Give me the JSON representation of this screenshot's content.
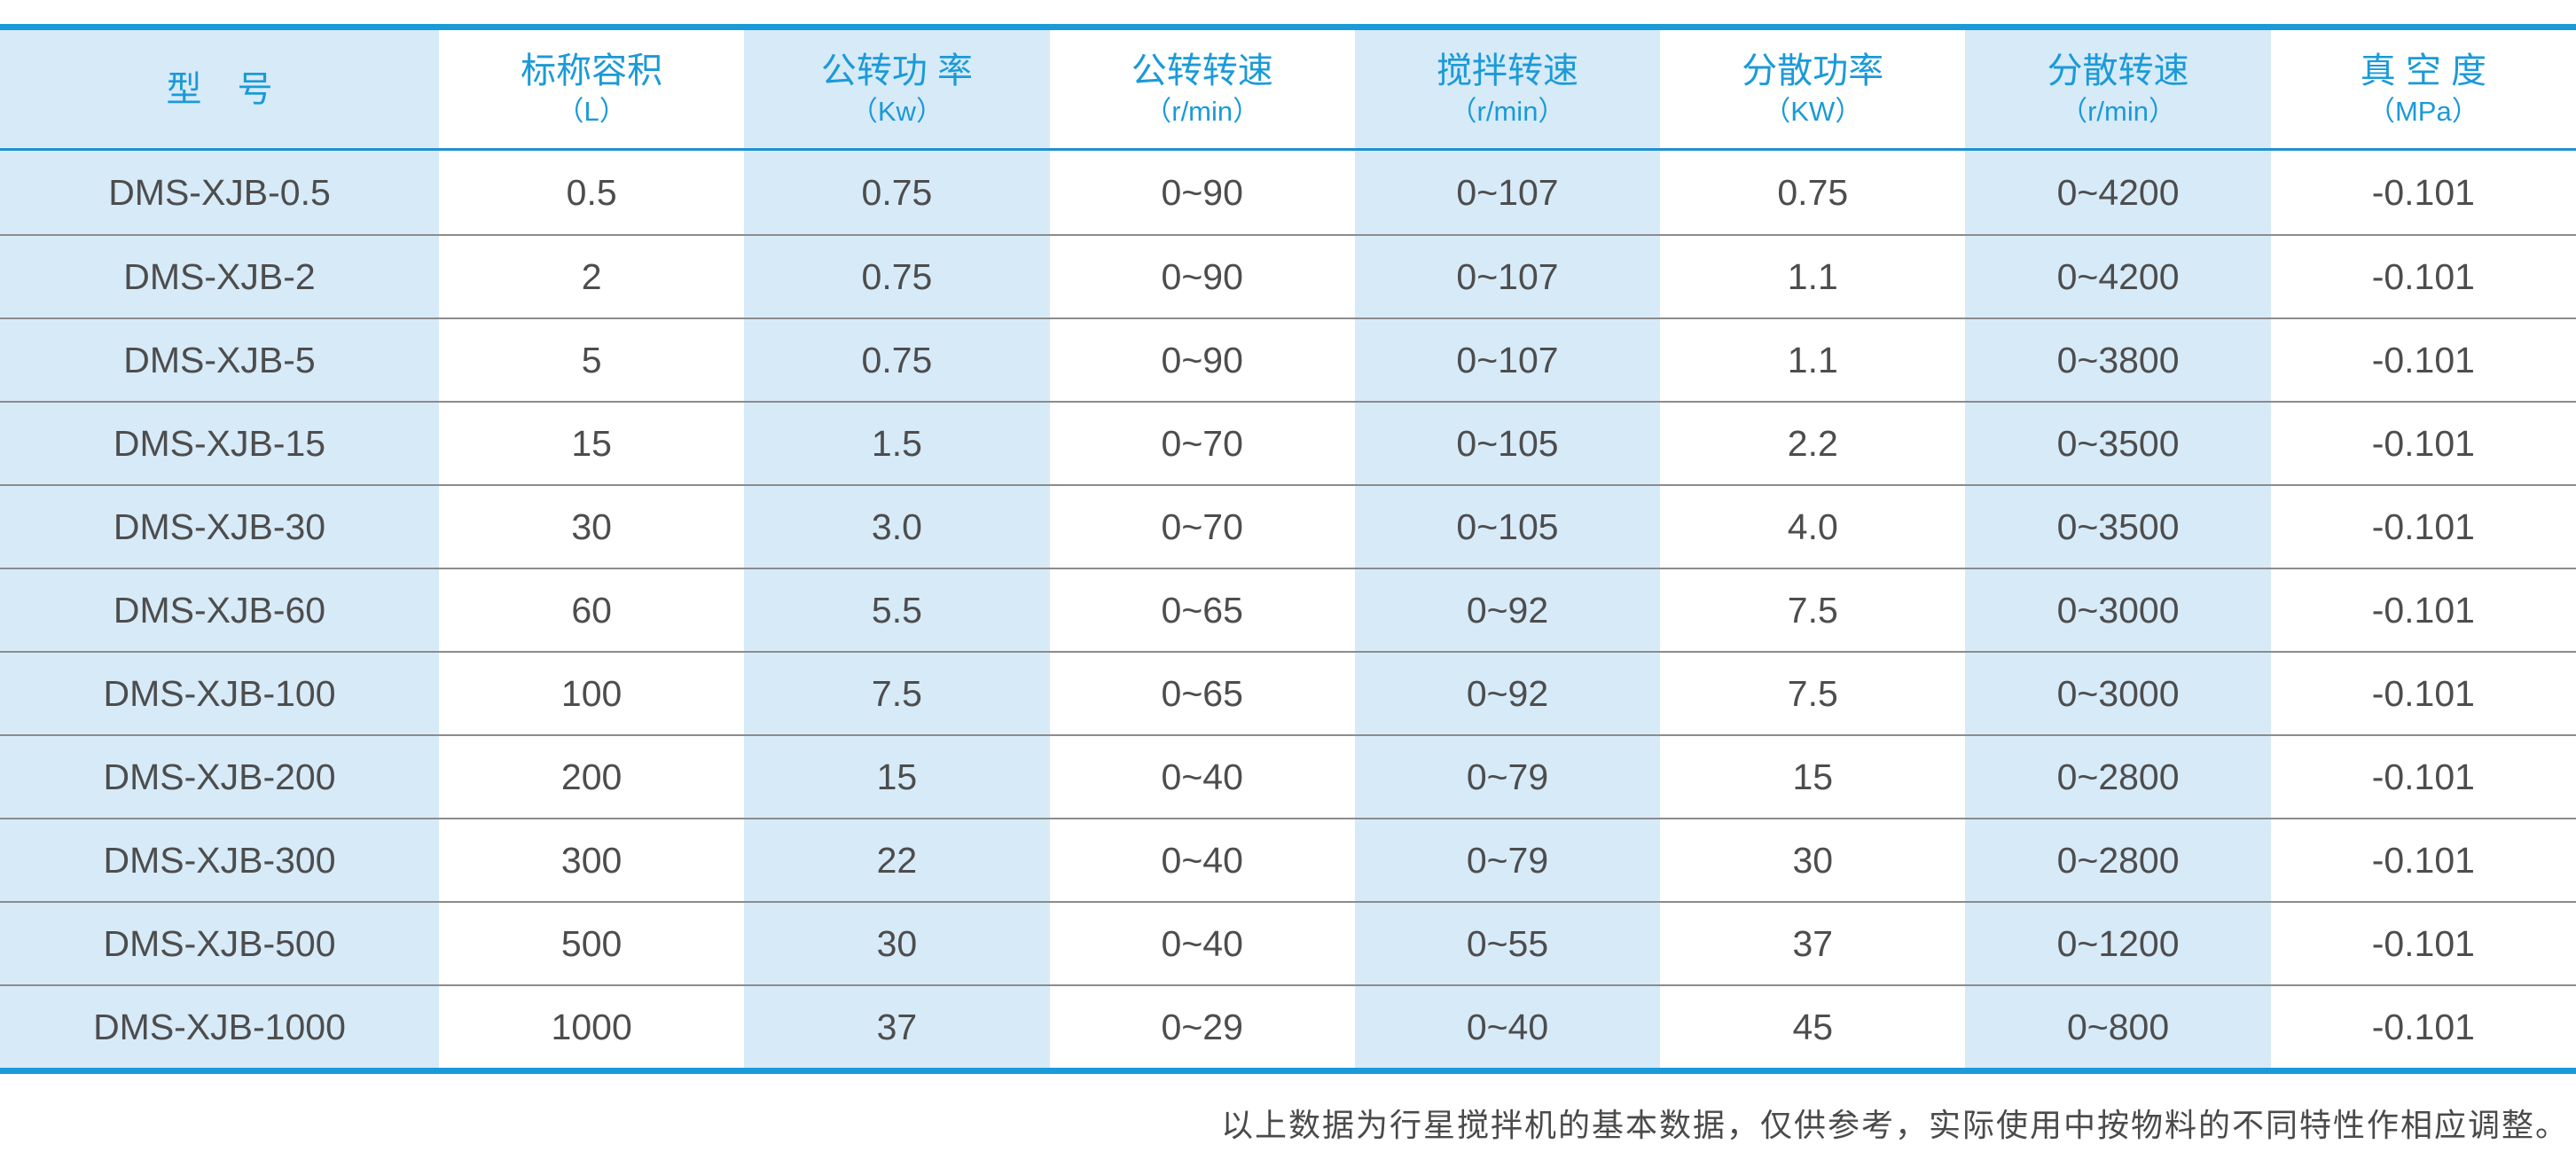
{
  "colors": {
    "accent": "#1b9ad8",
    "header-sep": "#2191cf",
    "light-blue": "#d7eaf8",
    "body-text": "#4d4d4d",
    "row-sep": "#8c8c8c",
    "note-text": "#4a4a4a"
  },
  "chart_data": {
    "type": "table",
    "columns": [
      {
        "title": "型　号",
        "unit": ""
      },
      {
        "title": "标称容积",
        "unit": "（L）"
      },
      {
        "title": "公转功 率",
        "unit": "（Kw）"
      },
      {
        "title": "公转转速",
        "unit": "（r/min）"
      },
      {
        "title": "搅拌转速",
        "unit": "（r/min）"
      },
      {
        "title": "分散功率",
        "unit": "（KW）"
      },
      {
        "title": "分散转速",
        "unit": "（r/min）"
      },
      {
        "title": "真 空 度",
        "unit": "（MPa）"
      }
    ],
    "rows": [
      [
        "DMS-XJB-0.5",
        "0.5",
        "0.75",
        "0~90",
        "0~107",
        "0.75",
        "0~4200",
        "-0.101"
      ],
      [
        "DMS-XJB-2",
        "2",
        "0.75",
        "0~90",
        "0~107",
        "1.1",
        "0~4200",
        "-0.101"
      ],
      [
        "DMS-XJB-5",
        "5",
        "0.75",
        "0~90",
        "0~107",
        "1.1",
        "0~3800",
        "-0.101"
      ],
      [
        "DMS-XJB-15",
        "15",
        "1.5",
        "0~70",
        "0~105",
        "2.2",
        "0~3500",
        "-0.101"
      ],
      [
        "DMS-XJB-30",
        "30",
        "3.0",
        "0~70",
        "0~105",
        "4.0",
        "0~3500",
        "-0.101"
      ],
      [
        "DMS-XJB-60",
        "60",
        "5.5",
        "0~65",
        "0~92",
        "7.5",
        "0~3000",
        "-0.101"
      ],
      [
        "DMS-XJB-100",
        "100",
        "7.5",
        "0~65",
        "0~92",
        "7.5",
        "0~3000",
        "-0.101"
      ],
      [
        "DMS-XJB-200",
        "200",
        "15",
        "0~40",
        "0~79",
        "15",
        "0~2800",
        "-0.101"
      ],
      [
        "DMS-XJB-300",
        "300",
        "22",
        "0~40",
        "0~79",
        "30",
        "0~2800",
        "-0.101"
      ],
      [
        "DMS-XJB-500",
        "500",
        "30",
        "0~40",
        "0~55",
        "37",
        "0~1200",
        "-0.101"
      ],
      [
        "DMS-XJB-1000",
        "1000",
        "37",
        "0~29",
        "0~40",
        "45",
        "0~800",
        "-0.101"
      ]
    ]
  },
  "footnote": "以上数据为行星搅拌机的基本数据，仅供参考，实际使用中按物料的不同特性作相应调整。"
}
